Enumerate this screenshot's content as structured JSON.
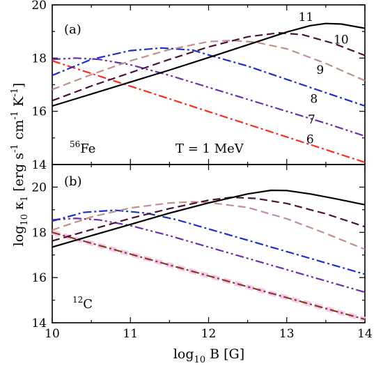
{
  "chart_data": [
    {
      "type": "line",
      "panel_tag": "(a)",
      "nucleus_mass": "56",
      "nucleus_symbol": "Fe",
      "annotation": "T = 1 MeV",
      "xlim": [
        10,
        14
      ],
      "ylim": [
        14,
        20
      ],
      "x_ticks": [
        "10",
        "11",
        "12",
        "13",
        "14"
      ],
      "y_ticks": [
        "14",
        "16",
        "18",
        "20"
      ],
      "grid": false,
      "series": [
        {
          "name": "6",
          "color": "#ff2a1a",
          "dash": "dash-dot",
          "x": [
            10,
            14
          ],
          "y": [
            17.9,
            14.08
          ]
        },
        {
          "name": "7",
          "color": "#6a2fb0",
          "dash": "dash-dot-dot",
          "x": [
            10,
            10.3,
            10.6,
            11,
            11.5,
            12,
            12.5,
            13,
            13.5,
            14
          ],
          "y": [
            17.95,
            18.0,
            17.95,
            17.75,
            17.35,
            16.9,
            16.45,
            16.0,
            15.55,
            15.07
          ]
        },
        {
          "name": "8",
          "color": "#1a2fd0",
          "dash": "dash-dot",
          "x": [
            10,
            10.5,
            11,
            11.4,
            11.8,
            12,
            12.5,
            13,
            13.5,
            14
          ],
          "y": [
            17.35,
            17.95,
            18.28,
            18.38,
            18.3,
            18.12,
            17.7,
            17.2,
            16.7,
            16.2
          ]
        },
        {
          "name": "9",
          "color": "#c09088",
          "dash": "dash",
          "x": [
            10,
            10.5,
            11,
            11.5,
            12,
            12.3,
            12.6,
            13,
            13.5,
            14
          ],
          "y": [
            16.82,
            17.38,
            17.9,
            18.32,
            18.62,
            18.66,
            18.6,
            18.35,
            17.8,
            17.15
          ]
        },
        {
          "name": "10",
          "color": "#4a1038",
          "dash": "dash",
          "x": [
            10,
            10.5,
            11,
            11.5,
            12,
            12.5,
            12.9,
            13.2,
            13.6,
            14
          ],
          "y": [
            16.4,
            16.95,
            17.45,
            17.95,
            18.42,
            18.8,
            18.95,
            18.88,
            18.55,
            18.1
          ]
        },
        {
          "name": "11",
          "color": "#000000",
          "dash": "solid",
          "x": [
            10,
            10.5,
            11,
            11.5,
            12,
            12.5,
            13,
            13.3,
            13.5,
            13.7,
            14
          ],
          "y": [
            16.2,
            16.65,
            17.1,
            17.55,
            18.02,
            18.5,
            18.98,
            19.22,
            19.3,
            19.28,
            19.12
          ]
        }
      ]
    },
    {
      "type": "line",
      "panel_tag": "(b)",
      "nucleus_mass": "12",
      "nucleus_symbol": "C",
      "xlim": [
        10,
        14
      ],
      "ylim": [
        14,
        21
      ],
      "x_ticks": [
        "10",
        "11",
        "12",
        "13",
        "14"
      ],
      "y_ticks": [
        "14",
        "16",
        "18",
        "20"
      ],
      "xlabel_prefix": "log",
      "xlabel_sub": "10",
      "xlabel_rest": " B [G]",
      "grid": false,
      "series": [
        {
          "color": "#f4c8ec",
          "dash": "dash",
          "x": [
            10,
            14
          ],
          "y": [
            18.0,
            14.15
          ]
        },
        {
          "color": "#8a3a1a",
          "dash": "dash-dot",
          "x": [
            10,
            14
          ],
          "y": [
            18.0,
            14.15
          ]
        },
        {
          "color": "#6a2fb0",
          "dash": "dash-dot-dot",
          "x": [
            10,
            10.3,
            10.6,
            11,
            11.5,
            12,
            12.5,
            13,
            13.5,
            14
          ],
          "y": [
            18.55,
            18.62,
            18.55,
            18.3,
            17.85,
            17.35,
            16.85,
            16.35,
            15.85,
            15.35
          ]
        },
        {
          "color": "#1a2fd0",
          "dash": "dash-dot",
          "x": [
            10,
            10.4,
            10.8,
            11.2,
            11.6,
            12,
            12.5,
            13,
            13.5,
            14
          ],
          "y": [
            18.5,
            18.88,
            18.98,
            18.85,
            18.55,
            18.15,
            17.65,
            17.15,
            16.65,
            16.15
          ]
        },
        {
          "color": "#c09088",
          "dash": "dash",
          "x": [
            10,
            10.5,
            11,
            11.5,
            11.8,
            12,
            12.5,
            13,
            13.5,
            14
          ],
          "y": [
            18.1,
            18.68,
            19.08,
            19.3,
            19.35,
            19.32,
            19.1,
            18.6,
            17.95,
            17.25
          ]
        },
        {
          "color": "#4a1038",
          "dash": "dash",
          "x": [
            10,
            10.5,
            11,
            11.5,
            12,
            12.3,
            12.6,
            13,
            13.5,
            14
          ],
          "y": [
            17.62,
            18.12,
            18.62,
            19.05,
            19.42,
            19.55,
            19.5,
            19.28,
            18.82,
            18.25
          ]
        },
        {
          "color": "#000000",
          "dash": "solid",
          "x": [
            10,
            10.5,
            11,
            11.5,
            12,
            12.5,
            12.8,
            13,
            13.3,
            13.6,
            14
          ],
          "y": [
            17.35,
            17.85,
            18.35,
            18.85,
            19.3,
            19.7,
            19.86,
            19.85,
            19.7,
            19.5,
            19.22
          ]
        }
      ]
    }
  ]
}
